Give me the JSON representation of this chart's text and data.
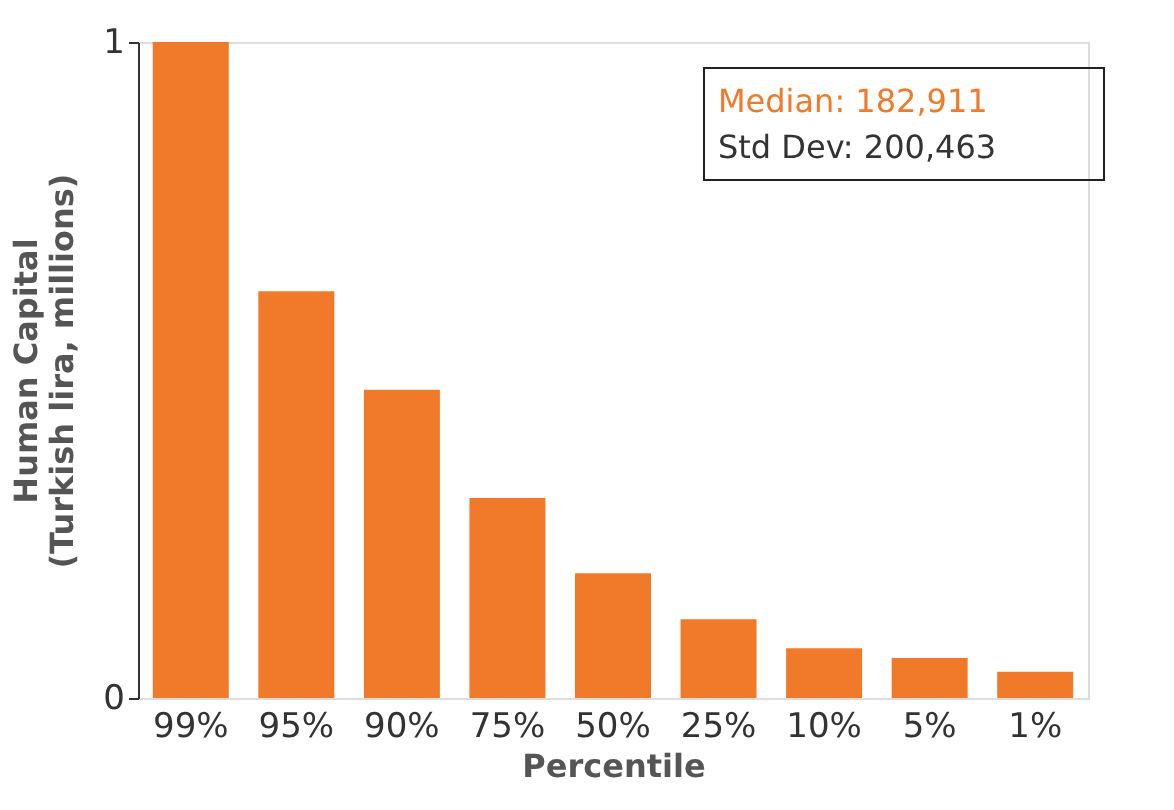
{
  "chart_data": {
    "type": "bar",
    "xlabel": "Percentile",
    "ylabel": "Human Capital\n(Turkish lira, millions)",
    "categories": [
      "99%",
      "95%",
      "90%",
      "75%",
      "50%",
      "25%",
      "10%",
      "5%",
      "1%"
    ],
    "series": [
      {
        "color": "#f07a2a",
        "values": [
          1.0,
          0.62,
          0.47,
          0.305,
          0.19,
          0.12,
          0.076,
          0.061,
          0.04
        ]
      }
    ],
    "ylim": [
      0,
      1
    ],
    "yticks": [
      0,
      1
    ],
    "grid": false,
    "annotations": [
      "Median: 182,911",
      "Std Dev: 200,463"
    ]
  }
}
